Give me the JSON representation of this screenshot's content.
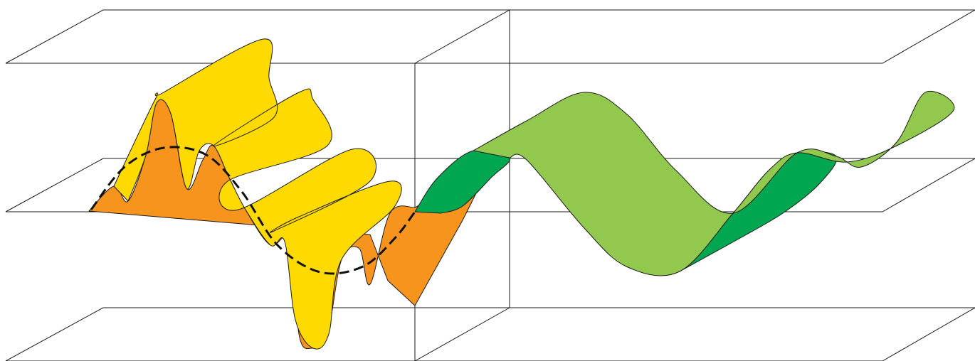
{
  "colors": {
    "background": "#ffffff",
    "line": "#1a1a1a",
    "fast_wave_front": "#FFDA00",
    "fast_wave_back": "#F7941D",
    "slow_wave_front": "#92C84E",
    "slow_wave_back": "#00A650",
    "envelope": "#111111"
  },
  "elements": {
    "planes": [
      "top-plane",
      "middle-plane",
      "bottom-plane"
    ],
    "divider": "vertical-interface-plane",
    "waves": [
      "high-frequency-ribbon-wave",
      "low-frequency-ribbon-wave"
    ],
    "overlay": "dashed-envelope-curve"
  }
}
